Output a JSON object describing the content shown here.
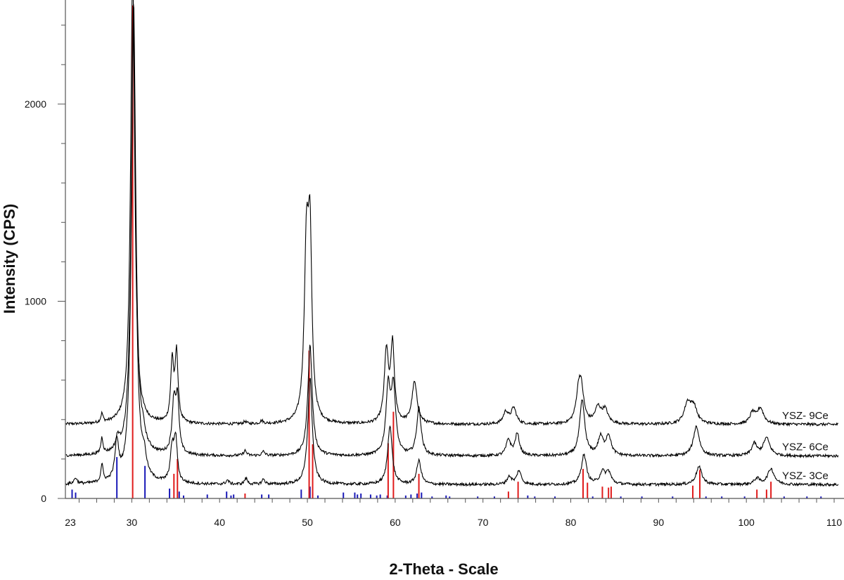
{
  "chart_data": {
    "type": "line",
    "title": "",
    "xlabel": "2-Theta - Scale",
    "ylabel": "Intensity (CPS)",
    "xlim": [
      23,
      110
    ],
    "ylim": [
      0,
      2500
    ],
    "x_ticks": [
      23,
      30,
      40,
      50,
      60,
      70,
      80,
      90,
      100,
      110
    ],
    "y_ticks": [
      0,
      1000,
      2000
    ],
    "grid": false,
    "colors": {
      "pattern": "#000000",
      "ref_red": "#e01b1b",
      "ref_blue": "#1a1ab8"
    },
    "series": [
      {
        "name": "YSZ- 9Ce",
        "baseline": 375,
        "peaks": [
          [
            26.6,
            45,
            0.15
          ],
          [
            30.1,
            2300,
            0.28
          ],
          [
            34.6,
            310,
            0.2
          ],
          [
            35.1,
            350,
            0.2
          ],
          [
            42.9,
            12,
            0.2
          ],
          [
            44.8,
            15,
            0.2
          ],
          [
            49.9,
            860,
            0.3
          ],
          [
            50.3,
            840,
            0.25
          ],
          [
            59.0,
            360,
            0.28
          ],
          [
            59.7,
            390,
            0.25
          ],
          [
            62.2,
            210,
            0.35
          ],
          [
            72.6,
            60,
            0.35
          ],
          [
            73.5,
            80,
            0.35
          ],
          [
            80.9,
            145,
            0.35
          ],
          [
            81.2,
            145,
            0.35
          ],
          [
            83.1,
            80,
            0.4
          ],
          [
            83.9,
            70,
            0.4
          ],
          [
            93.3,
            100,
            0.45
          ],
          [
            94.0,
            85,
            0.45
          ],
          [
            100.7,
            55,
            0.35
          ],
          [
            101.6,
            80,
            0.45
          ]
        ]
      },
      {
        "name": "YSZ- 6Ce",
        "baseline": 215,
        "peaks": [
          [
            26.6,
            80,
            0.15
          ],
          [
            28.4,
            60,
            0.25
          ],
          [
            30.2,
            2300,
            0.3
          ],
          [
            31.3,
            50,
            0.3
          ],
          [
            34.8,
            260,
            0.25
          ],
          [
            35.2,
            260,
            0.22
          ],
          [
            42.9,
            25,
            0.2
          ],
          [
            45.0,
            20,
            0.2
          ],
          [
            50.3,
            560,
            0.3
          ],
          [
            59.2,
            330,
            0.3
          ],
          [
            59.8,
            330,
            0.3
          ],
          [
            62.7,
            240,
            0.3
          ],
          [
            72.9,
            80,
            0.3
          ],
          [
            73.9,
            110,
            0.3
          ],
          [
            81.3,
            280,
            0.35
          ],
          [
            83.4,
            90,
            0.35
          ],
          [
            84.3,
            100,
            0.35
          ],
          [
            94.3,
            150,
            0.4
          ],
          [
            100.9,
            60,
            0.35
          ],
          [
            102.3,
            90,
            0.45
          ]
        ]
      },
      {
        "name": "YSZ- 3Ce",
        "baseline": 70,
        "peaks": [
          [
            23.6,
            30,
            0.2
          ],
          [
            26.6,
            90,
            0.15
          ],
          [
            28.3,
            190,
            0.25
          ],
          [
            30.2,
            2300,
            0.3
          ],
          [
            31.4,
            90,
            0.3
          ],
          [
            34.6,
            170,
            0.25
          ],
          [
            35.0,
            210,
            0.22
          ],
          [
            40.9,
            20,
            0.2
          ],
          [
            43.0,
            30,
            0.2
          ],
          [
            45.0,
            25,
            0.2
          ],
          [
            50.3,
            540,
            0.3
          ],
          [
            59.4,
            300,
            0.3
          ],
          [
            62.7,
            120,
            0.3
          ],
          [
            73.0,
            40,
            0.3
          ],
          [
            74.1,
            70,
            0.3
          ],
          [
            81.5,
            150,
            0.35
          ],
          [
            83.6,
            60,
            0.35
          ],
          [
            84.3,
            60,
            0.35
          ],
          [
            94.6,
            90,
            0.4
          ],
          [
            101.2,
            30,
            0.35
          ],
          [
            102.8,
            80,
            0.45
          ]
        ]
      }
    ],
    "reference_red": [
      [
        30.1,
        2500
      ],
      [
        34.8,
        125
      ],
      [
        35.2,
        200
      ],
      [
        42.9,
        25
      ],
      [
        50.2,
        750
      ],
      [
        50.6,
        275
      ],
      [
        59.2,
        280
      ],
      [
        59.8,
        440
      ],
      [
        62.7,
        125
      ],
      [
        72.9,
        35
      ],
      [
        74.0,
        85
      ],
      [
        81.4,
        150
      ],
      [
        81.9,
        80
      ],
      [
        83.6,
        60
      ],
      [
        84.3,
        55
      ],
      [
        84.6,
        60
      ],
      [
        93.9,
        65
      ],
      [
        94.7,
        145
      ],
      [
        101.2,
        45
      ],
      [
        102.3,
        45
      ],
      [
        102.8,
        85
      ]
    ],
    "reference_blue": [
      [
        23.2,
        45
      ],
      [
        23.6,
        30
      ],
      [
        28.3,
        210
      ],
      [
        31.5,
        165
      ],
      [
        34.3,
        50
      ],
      [
        35.4,
        35
      ],
      [
        35.9,
        15
      ],
      [
        38.6,
        20
      ],
      [
        40.8,
        35
      ],
      [
        41.3,
        15
      ],
      [
        41.6,
        20
      ],
      [
        44.8,
        20
      ],
      [
        45.6,
        20
      ],
      [
        49.3,
        45
      ],
      [
        50.3,
        60
      ],
      [
        50.6,
        30
      ],
      [
        51.2,
        15
      ],
      [
        54.1,
        30
      ],
      [
        55.4,
        30
      ],
      [
        55.7,
        20
      ],
      [
        56.1,
        25
      ],
      [
        57.2,
        20
      ],
      [
        57.9,
        15
      ],
      [
        58.3,
        20
      ],
      [
        59.1,
        15
      ],
      [
        61.2,
        15
      ],
      [
        61.8,
        20
      ],
      [
        62.5,
        25
      ],
      [
        63.0,
        30
      ],
      [
        64.2,
        10
      ],
      [
        65.8,
        15
      ],
      [
        66.2,
        10
      ],
      [
        69.4,
        10
      ],
      [
        71.3,
        10
      ],
      [
        75.1,
        15
      ],
      [
        75.9,
        10
      ],
      [
        78.2,
        10
      ],
      [
        82.5,
        10
      ],
      [
        85.7,
        10
      ],
      [
        88.1,
        10
      ],
      [
        91.6,
        10
      ],
      [
        95.4,
        10
      ],
      [
        97.2,
        10
      ],
      [
        99.8,
        10
      ],
      [
        104.3,
        10
      ],
      [
        106.9,
        10
      ],
      [
        108.5,
        10
      ]
    ]
  }
}
